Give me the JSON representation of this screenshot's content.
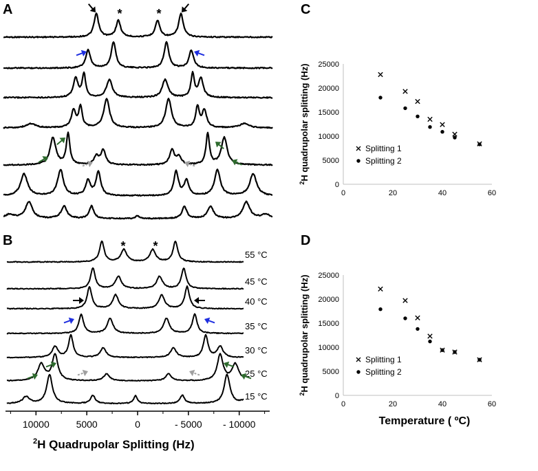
{
  "panels": {
    "A": "A",
    "B": "B",
    "C": "C",
    "D": "D"
  },
  "asterisk": "*",
  "panel_a": {
    "description_count": 7,
    "marker_colors": {
      "black": "#000000",
      "blue": "#1f2fe0",
      "green": "#2e6b2e",
      "gray": "#a0a0a0"
    }
  },
  "panel_b": {
    "temperature_labels": [
      "55 °C",
      "45 °C",
      "40 °C",
      "35 °C",
      "30 °C",
      "25 °C",
      "15 °C"
    ],
    "x_axis": {
      "ticks": [
        10000,
        5000,
        0,
        -5000,
        -10000
      ],
      "tick_labels": [
        "10000",
        "5000",
        "0",
        "- 5000",
        "- 10000"
      ],
      "range": [
        13000,
        -13000
      ],
      "label_prefix": "2",
      "label_text": "H Quadrupolar Splitting (Hz)"
    }
  },
  "chart_data": [
    {
      "id": "C",
      "type": "scatter",
      "title": "",
      "xlabel": "",
      "ylabel_prefix": "2",
      "ylabel": "H quadrupolar splitting (Hz)",
      "xlim": [
        0,
        60
      ],
      "ylim": [
        0,
        25000
      ],
      "x_ticks": [
        0,
        20,
        40,
        60
      ],
      "y_ticks": [
        0,
        5000,
        10000,
        15000,
        20000,
        25000
      ],
      "legend_position": "lower-left",
      "series": [
        {
          "name": "Splitting 1",
          "marker": "cross",
          "x": [
            15,
            25,
            30,
            35,
            40,
            45,
            55
          ],
          "y": [
            22800,
            19300,
            17200,
            13500,
            12400,
            10400,
            8400
          ]
        },
        {
          "name": "Splitting 2",
          "marker": "dot",
          "x": [
            15,
            25,
            30,
            35,
            40,
            45,
            55
          ],
          "y": [
            18000,
            15800,
            14100,
            11900,
            10900,
            9700,
            8300
          ]
        }
      ]
    },
    {
      "id": "D",
      "type": "scatter",
      "title": "",
      "xlabel": "Temperature ( ºC)",
      "ylabel_prefix": "2",
      "ylabel": "H quadrupolar splitting (Hz)",
      "xlim": [
        0,
        60
      ],
      "ylim": [
        0,
        25000
      ],
      "x_ticks": [
        0,
        20,
        40,
        60
      ],
      "y_ticks": [
        0,
        5000,
        10000,
        15000,
        20000,
        25000
      ],
      "legend_position": "lower-left",
      "series": [
        {
          "name": "Splitting 1",
          "marker": "cross",
          "x": [
            15,
            25,
            30,
            35,
            40,
            45,
            55
          ],
          "y": [
            22100,
            19700,
            16100,
            12300,
            9400,
            9000,
            7400
          ]
        },
        {
          "name": "Splitting 2",
          "marker": "dot",
          "x": [
            15,
            25,
            30,
            35,
            40,
            45,
            55
          ],
          "y": [
            17900,
            16000,
            13800,
            11200,
            9400,
            9000,
            7400
          ]
        }
      ]
    }
  ]
}
